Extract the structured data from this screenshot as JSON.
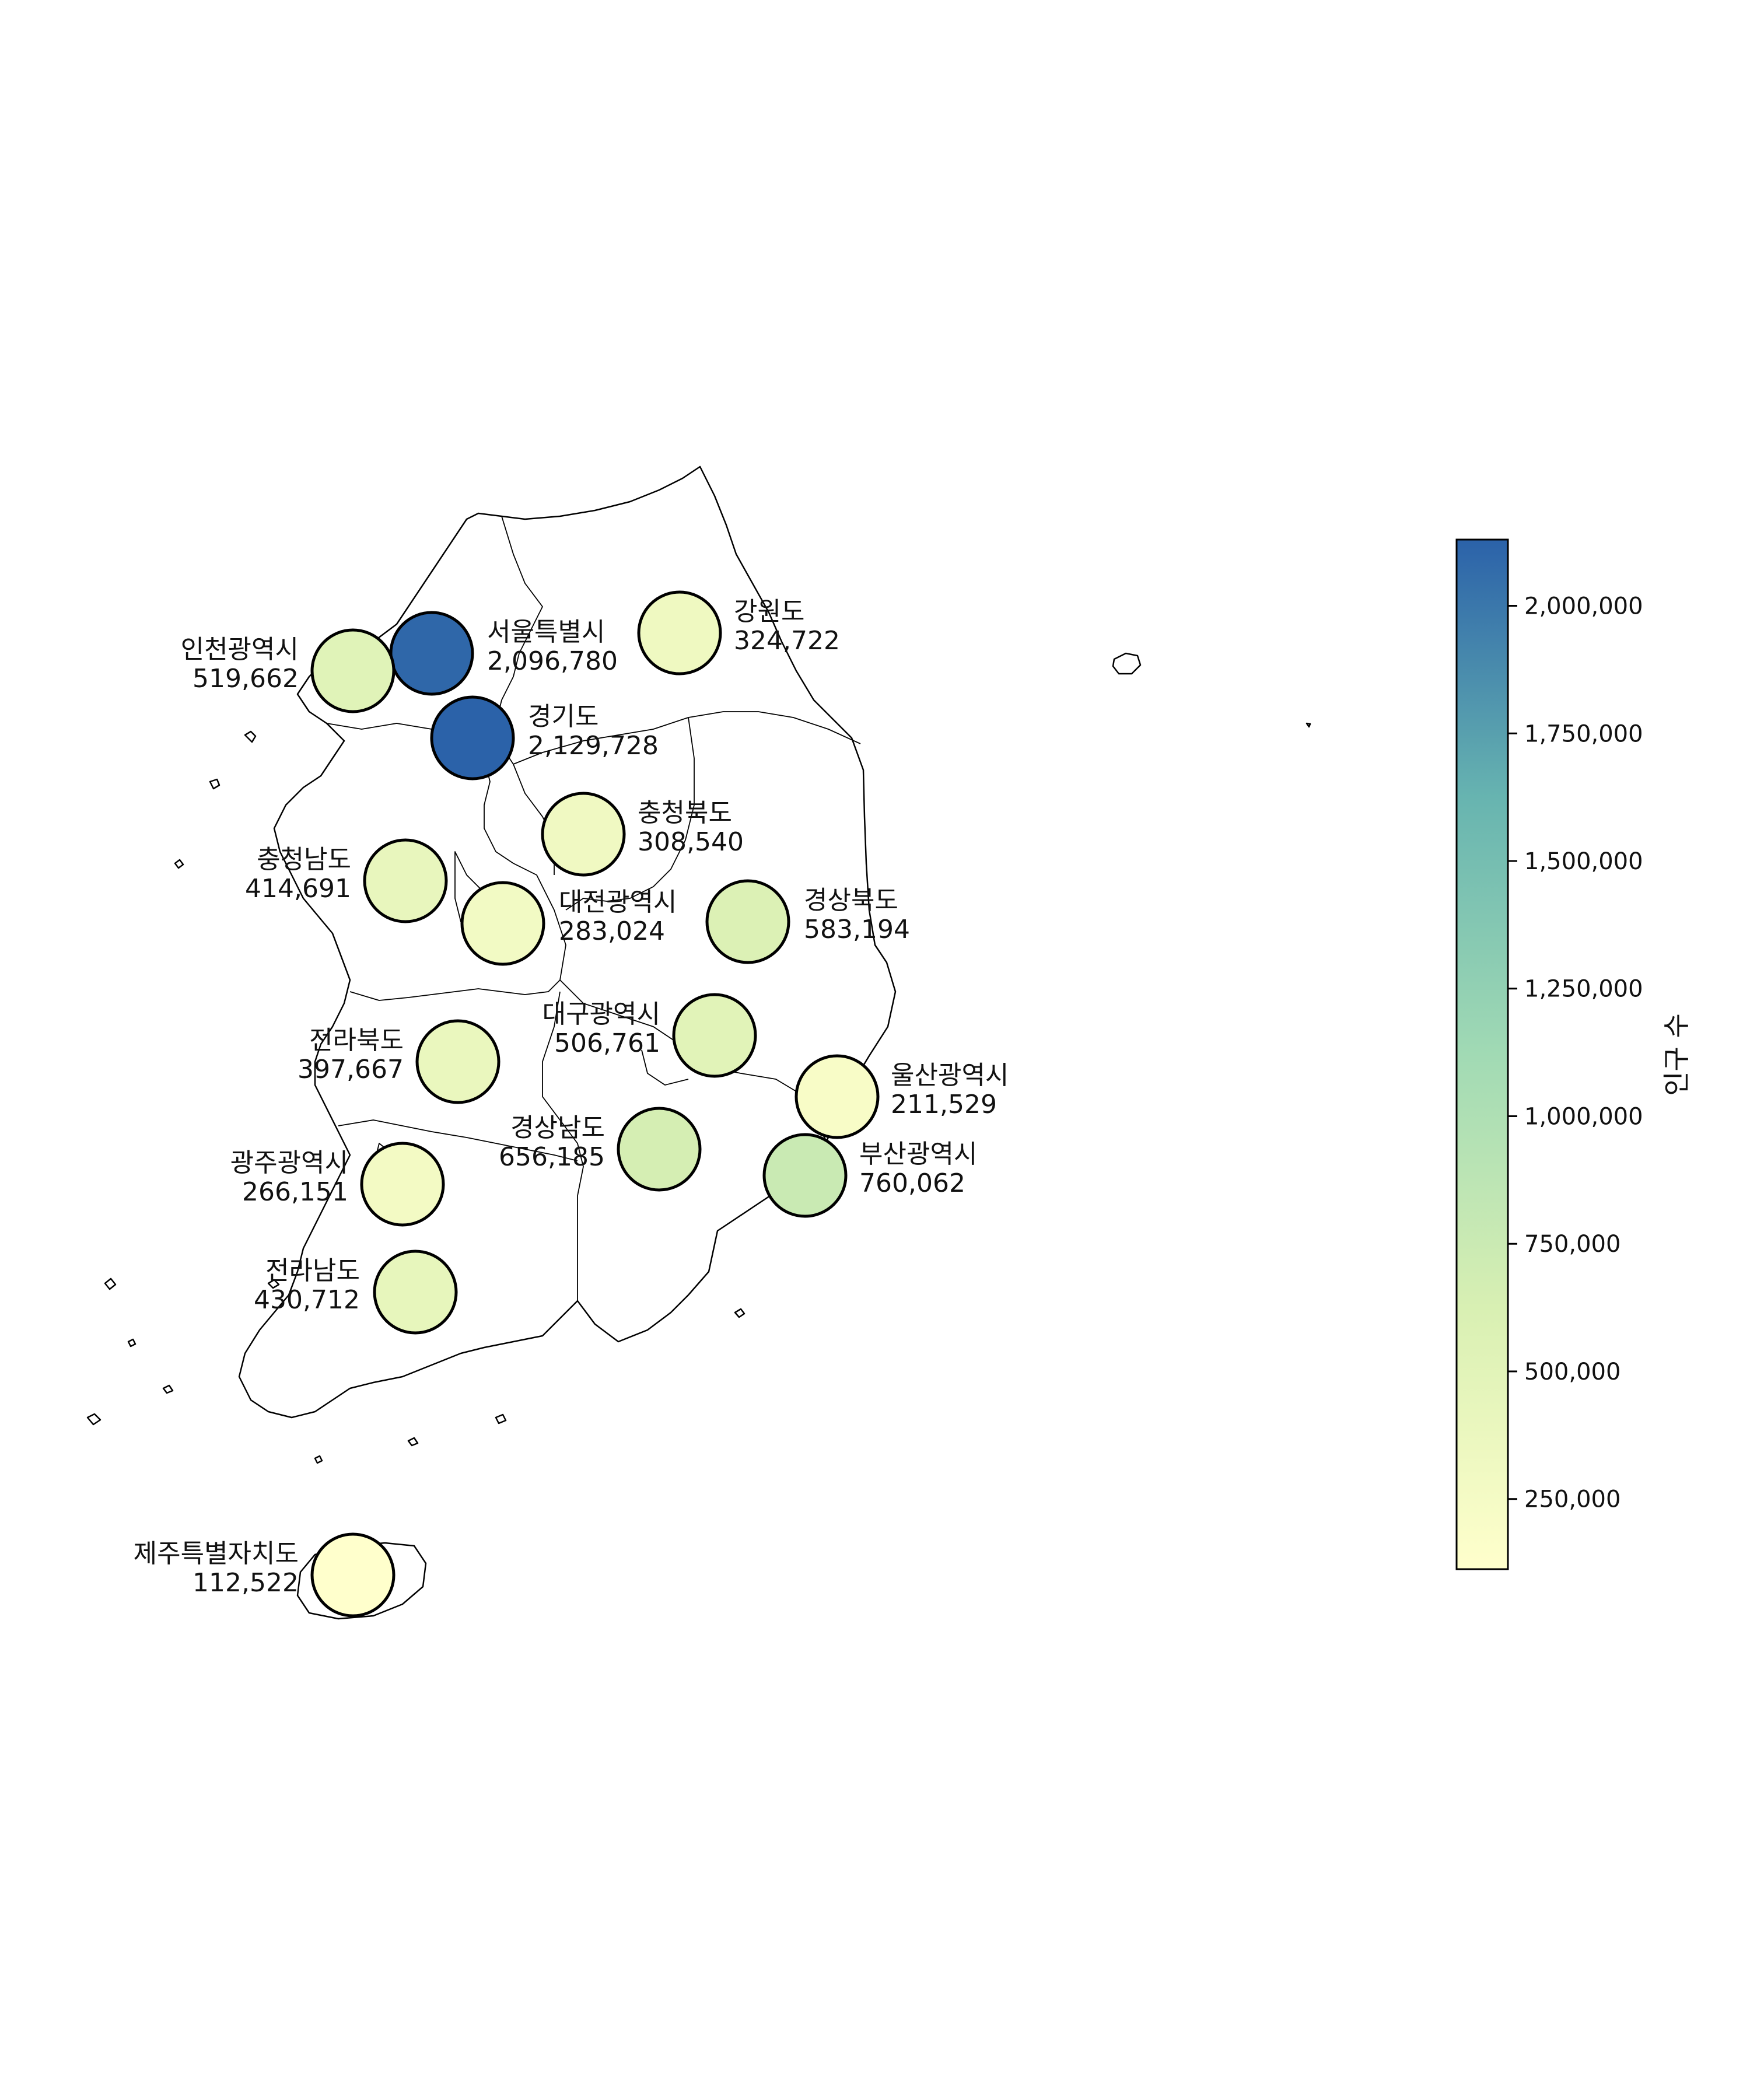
{
  "colorbar": {
    "title": "인구 수",
    "min": 112522,
    "max": 2129728,
    "ticks": [
      {
        "value": 250000,
        "label": "250,000"
      },
      {
        "value": 500000,
        "label": "500,000"
      },
      {
        "value": 750000,
        "label": "750,000"
      },
      {
        "value": 1000000,
        "label": "1,000,000"
      },
      {
        "value": 1250000,
        "label": "1,250,000"
      },
      {
        "value": 1500000,
        "label": "1,500,000"
      },
      {
        "value": 1750000,
        "label": "1,750,000"
      },
      {
        "value": 2000000,
        "label": "2,000,000"
      }
    ],
    "colormap": "YlGnBu",
    "colors": [
      "#ffffcc",
      "#d9f0b3",
      "#a1dab4",
      "#67b4b0",
      "#2b62a9"
    ]
  },
  "regions": [
    {
      "id": "seoul",
      "name": "서울특별시",
      "value_label": "2,096,780",
      "population": 2096780
    },
    {
      "id": "gyeonggi",
      "name": "경기도",
      "value_label": "2,129,728",
      "population": 2129728
    },
    {
      "id": "incheon",
      "name": "인천광역시",
      "value_label": "519,662",
      "population": 519662
    },
    {
      "id": "gangwon",
      "name": "강원도",
      "value_label": "324,722",
      "population": 324722
    },
    {
      "id": "chungbuk",
      "name": "충청북도",
      "value_label": "308,540",
      "population": 308540
    },
    {
      "id": "chungnam",
      "name": "충청남도",
      "value_label": "414,691",
      "population": 414691
    },
    {
      "id": "daejeon",
      "name": "대전광역시",
      "value_label": "283,024",
      "population": 283024
    },
    {
      "id": "gyeongbuk",
      "name": "경상북도",
      "value_label": "583,194",
      "population": 583194
    },
    {
      "id": "daegu",
      "name": "대구광역시",
      "value_label": "506,761",
      "population": 506761
    },
    {
      "id": "jeonbuk",
      "name": "전라북도",
      "value_label": "397,667",
      "population": 397667
    },
    {
      "id": "ulsan",
      "name": "울산광역시",
      "value_label": "211,529",
      "population": 211529
    },
    {
      "id": "gyeongnam",
      "name": "경상남도",
      "value_label": "656,185",
      "population": 656185
    },
    {
      "id": "busan",
      "name": "부산광역시",
      "value_label": "760,062",
      "population": 760062
    },
    {
      "id": "gwangju",
      "name": "광주광역시",
      "value_label": "266,151",
      "population": 266151
    },
    {
      "id": "jeonnam",
      "name": "전라남도",
      "value_label": "430,712",
      "population": 430712
    },
    {
      "id": "jeju",
      "name": "제주특별자치도",
      "value_label": "112,522",
      "population": 112522
    }
  ]
}
